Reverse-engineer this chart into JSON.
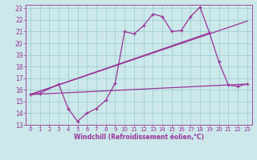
{
  "xlabel": "Windchill (Refroidissement éolien,°C)",
  "bg_color": "#cce8ea",
  "line_color": "#993399",
  "xlim": [
    -0.5,
    23.5
  ],
  "ylim": [
    13,
    23.3
  ],
  "yticks": [
    13,
    14,
    15,
    16,
    17,
    18,
    19,
    20,
    21,
    22,
    23
  ],
  "xticks": [
    0,
    1,
    2,
    3,
    4,
    5,
    6,
    7,
    8,
    9,
    10,
    11,
    12,
    13,
    14,
    15,
    16,
    17,
    18,
    19,
    20,
    21,
    22,
    23
  ],
  "series1_x": [
    0,
    1,
    3,
    4,
    5,
    6,
    7,
    8,
    9,
    10,
    11,
    12,
    13,
    14,
    15,
    16,
    17,
    18,
    19,
    20,
    21,
    22,
    23
  ],
  "series1_y": [
    15.6,
    15.7,
    16.5,
    14.4,
    13.3,
    14.0,
    14.4,
    15.1,
    16.6,
    21.0,
    20.8,
    21.5,
    22.5,
    22.3,
    21.0,
    21.1,
    22.3,
    23.1,
    20.9,
    18.4,
    16.4,
    16.3,
    16.5
  ],
  "series2_x": [
    0,
    23
  ],
  "series2_y": [
    15.6,
    21.9
  ],
  "series3_x": [
    0,
    19
  ],
  "series3_y": [
    15.6,
    20.9
  ],
  "series4_x": [
    0,
    23
  ],
  "series4_y": [
    15.6,
    16.5
  ],
  "grid_color": "#99cccc",
  "font_color": "#993399",
  "tick_fontsize": 5.0,
  "xlabel_fontsize": 5.5
}
